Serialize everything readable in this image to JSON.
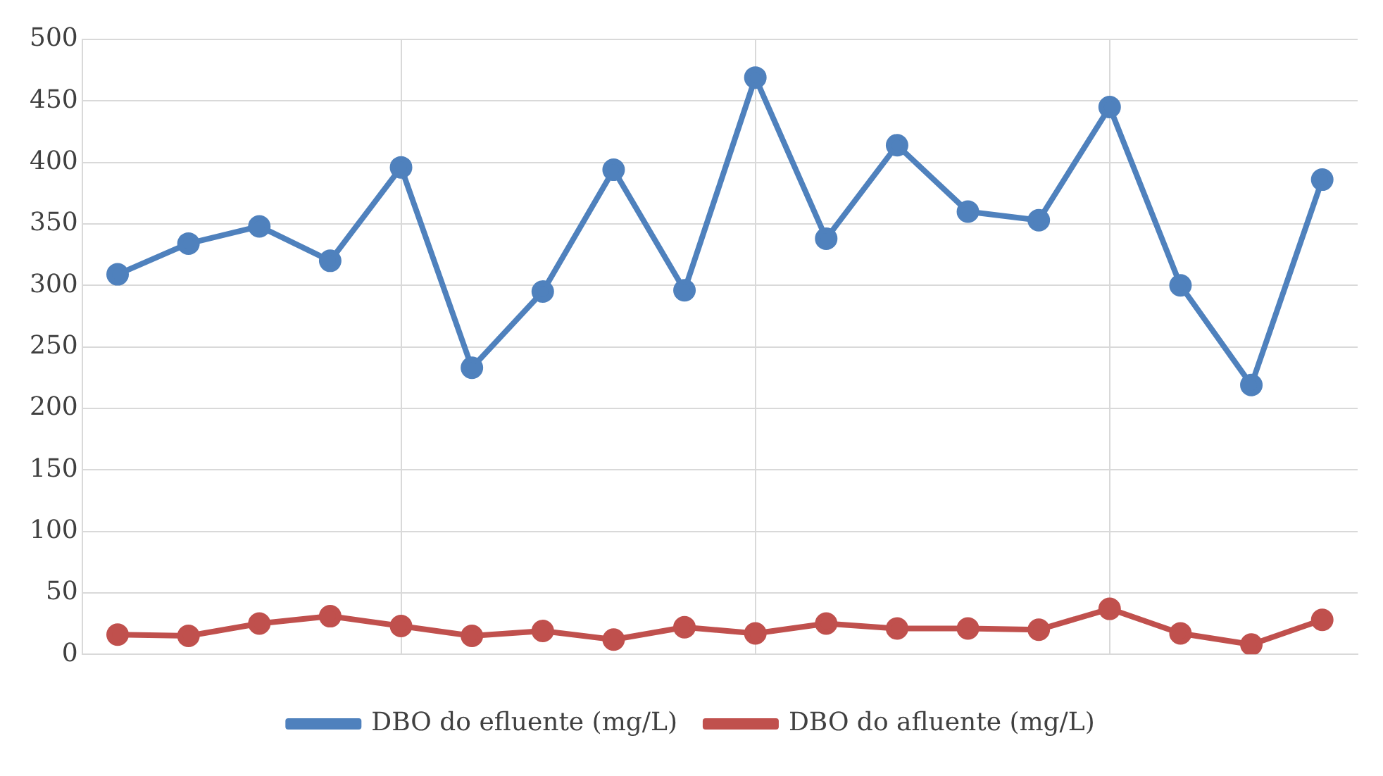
{
  "chart_data": {
    "type": "line",
    "categories": [
      null,
      null,
      null,
      null,
      null,
      null,
      null,
      null,
      null,
      null,
      null,
      null,
      null,
      null,
      null,
      null,
      null,
      null
    ],
    "series": [
      {
        "name": "DBO do efluente (mg/L)",
        "color": "#4f81bd",
        "values": [
          309,
          334,
          348,
          320,
          396,
          233,
          295,
          394,
          296,
          469,
          338,
          414,
          360,
          353,
          445,
          300,
          219,
          386
        ]
      },
      {
        "name": "DBO do afluente (mg/L)",
        "color": "#c0504d",
        "values": [
          16,
          15,
          25,
          31,
          23,
          15,
          19,
          12,
          22,
          17,
          25,
          21,
          21,
          20,
          37,
          17,
          8,
          28
        ]
      }
    ],
    "ylim": [
      0,
      500
    ],
    "yticks": [
      0,
      50,
      100,
      150,
      200,
      250,
      300,
      350,
      400,
      450,
      500
    ],
    "grid": true,
    "legend": "bottom",
    "marker": "circle",
    "line_style": "solid"
  }
}
